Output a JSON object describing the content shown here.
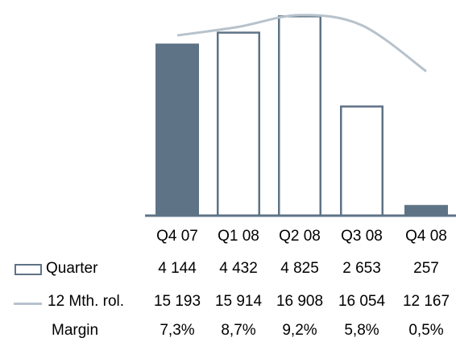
{
  "chart_data": {
    "type": "bar",
    "categories": [
      "Q4 07",
      "Q1 08",
      "Q2 08",
      "Q3 08",
      "Q4 08"
    ],
    "series": [
      {
        "name": "Quarter",
        "values": [
          4144,
          4432,
          4825,
          2653,
          257
        ],
        "filled": [
          true,
          false,
          false,
          false,
          true
        ]
      },
      {
        "name": "12 Mth. rol.",
        "type": "line",
        "values": [
          15193,
          15914,
          16908,
          16054,
          12167
        ]
      }
    ],
    "ylim": [
      0,
      5000
    ],
    "line_ylim": [
      0,
      17500
    ],
    "colors": {
      "bar": "#5e7386",
      "line": "#b7c2cc"
    }
  },
  "table": {
    "categories": [
      "Q4 07",
      "Q1 08",
      "Q2 08",
      "Q3 08",
      "Q4 08"
    ],
    "rows": [
      {
        "label": "Quarter",
        "values": [
          "4 144",
          "4 432",
          "4 825",
          "2 653",
          "257"
        ]
      },
      {
        "label": "12 Mth. rol.",
        "values": [
          "15 193",
          "15 914",
          "16 908",
          "16 054",
          "12 167"
        ]
      },
      {
        "label": "Margin",
        "values": [
          "7,3%",
          "8,7%",
          "9,2%",
          "5,8%",
          "0,5%"
        ]
      }
    ]
  }
}
